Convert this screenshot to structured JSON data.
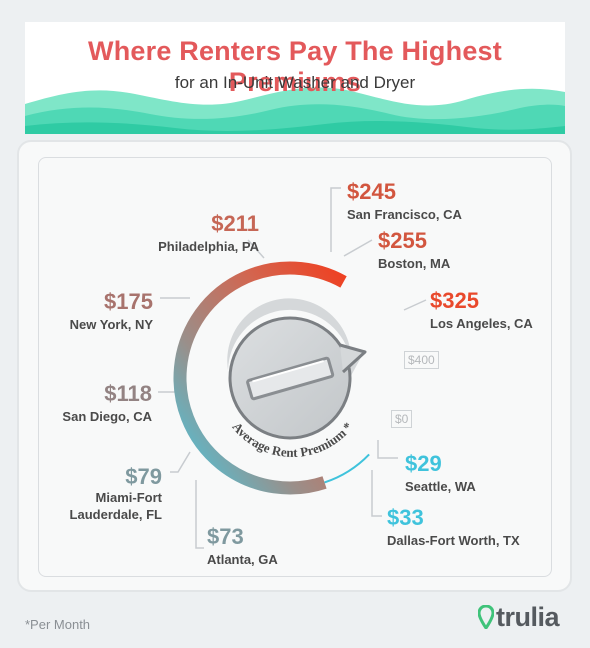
{
  "header": {
    "title": "Where Renters Pay The Highest Premiums",
    "subtitle": "for an In-Unit Washer and Dryer"
  },
  "chart_data": {
    "type": "gauge",
    "title": "Where Renters Pay The Highest Premiums",
    "subtitle": "for an In-Unit Washer and Dryer",
    "dial_label": "Average Rent Premium *",
    "scale": {
      "min_label": "$0",
      "max_label": "$400",
      "min": 0,
      "max": 400
    },
    "points": [
      {
        "city": "Seattle, WA",
        "value": 29,
        "label": "$29",
        "color": "#3fc3dc"
      },
      {
        "city": "Dallas-Fort Worth, TX",
        "value": 33,
        "label": "$33",
        "color": "#3fc3dc"
      },
      {
        "city": "Atlanta, GA",
        "value": 73,
        "label": "$73",
        "color": "#7f999f"
      },
      {
        "city": "Miami-Fort Lauderdale, FL",
        "city_line1": "Miami-Fort",
        "city_line2": "Lauderdale, FL",
        "value": 79,
        "label": "$79",
        "color": "#7f999f"
      },
      {
        "city": "San Diego, CA",
        "value": 118,
        "label": "$118",
        "color": "#938383"
      },
      {
        "city": "New York, NY",
        "value": 175,
        "label": "$175",
        "color": "#a8736d"
      },
      {
        "city": "Philadelphia, PA",
        "value": 211,
        "label": "$211",
        "color": "#c66756"
      },
      {
        "city": "San Francisco, CA",
        "value": 245,
        "label": "$245",
        "color": "#d2563f"
      },
      {
        "city": "Boston, MA",
        "value": 255,
        "label": "$255",
        "color": "#d2563f"
      },
      {
        "city": "Los Angeles, CA",
        "value": 325,
        "label": "$325",
        "color": "#e9492c"
      }
    ],
    "gradient_colors": [
      "#45c9e2",
      "#9a8f8a",
      "#d3654f",
      "#f03f20"
    ]
  },
  "footer": {
    "footnote": "*Per Month",
    "brand": "trulia",
    "brand_color": "#3fc37a",
    "brand_icon": "map-pin-icon"
  }
}
